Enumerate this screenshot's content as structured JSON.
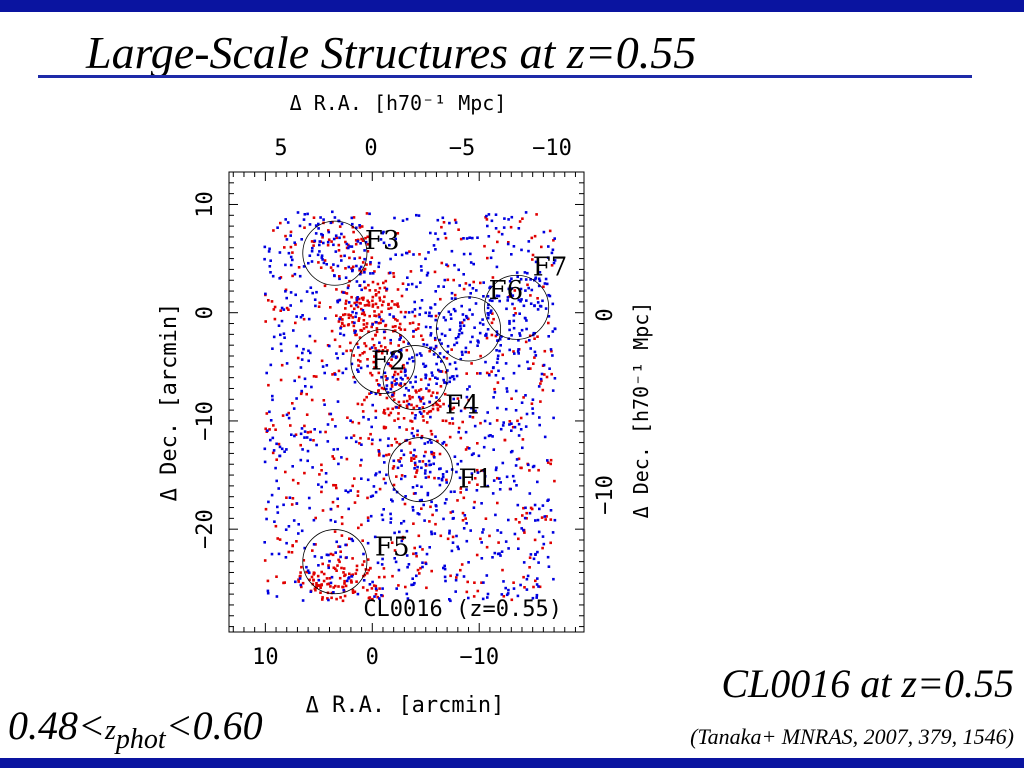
{
  "slide": {
    "title_prefix": "Large-Scale Structures at ",
    "title_z": "z",
    "title_suffix": "=0.55",
    "caption_prefix": "CL0016 at ",
    "caption_z": "z",
    "caption_suffix": "=0.55",
    "reference": "(Tanaka+ MNRAS, 2007, 379, 1546)",
    "zrange_left": "0.48<",
    "zrange_z": "z",
    "zrange_sub": "phot",
    "zrange_right": "<0.60",
    "colors": {
      "bar": "#0a14a0",
      "red_galaxies": "#e00000",
      "blue_galaxies": "#0000e0"
    }
  },
  "chart_data": {
    "type": "scatter",
    "xlabel_bottom": "Δ R.A.  [arcmin]",
    "xlabel_top": "Δ R.A.  [h70⁻¹ Mpc]",
    "ylabel_left": "Δ Dec.  [arcmin]",
    "ylabel_right": "Δ Dec.  [h70⁻¹ Mpc]",
    "x_reversed": true,
    "xlim": [
      13.4,
      -19.8
    ],
    "ylim": [
      -29.5,
      13
    ],
    "xticks_bottom": [
      "10",
      "0",
      "−10"
    ],
    "yticks_left": [
      "10",
      "0",
      "−10",
      "−20"
    ],
    "xticks_top": [
      "5",
      "0",
      "−5",
      "−10"
    ],
    "yticks_right": [
      "0",
      "−10"
    ],
    "annotation": "CL0016 (z=0.55)",
    "series": [
      {
        "color": "red",
        "n_points": 900
      },
      {
        "color": "blue",
        "n_points": 1100
      }
    ],
    "structures": [
      {
        "label": "F1",
        "x": -4.5,
        "y": -14.5,
        "r": 3.0
      },
      {
        "label": "F2",
        "x": -1.0,
        "y": -4.5,
        "r": 3.0
      },
      {
        "label": "F3",
        "x": 3.5,
        "y": 5.5,
        "r": 3.0
      },
      {
        "label": "F4",
        "x": -4.0,
        "y": -6.0,
        "r": 3.0
      },
      {
        "label": "F5",
        "x": 3.5,
        "y": -23.0,
        "r": 3.0
      },
      {
        "label": "F6",
        "x": -9.0,
        "y": -1.5,
        "r": 3.0
      },
      {
        "label": "F7",
        "x": -13.5,
        "y": 0.5,
        "r": 3.0
      }
    ]
  }
}
